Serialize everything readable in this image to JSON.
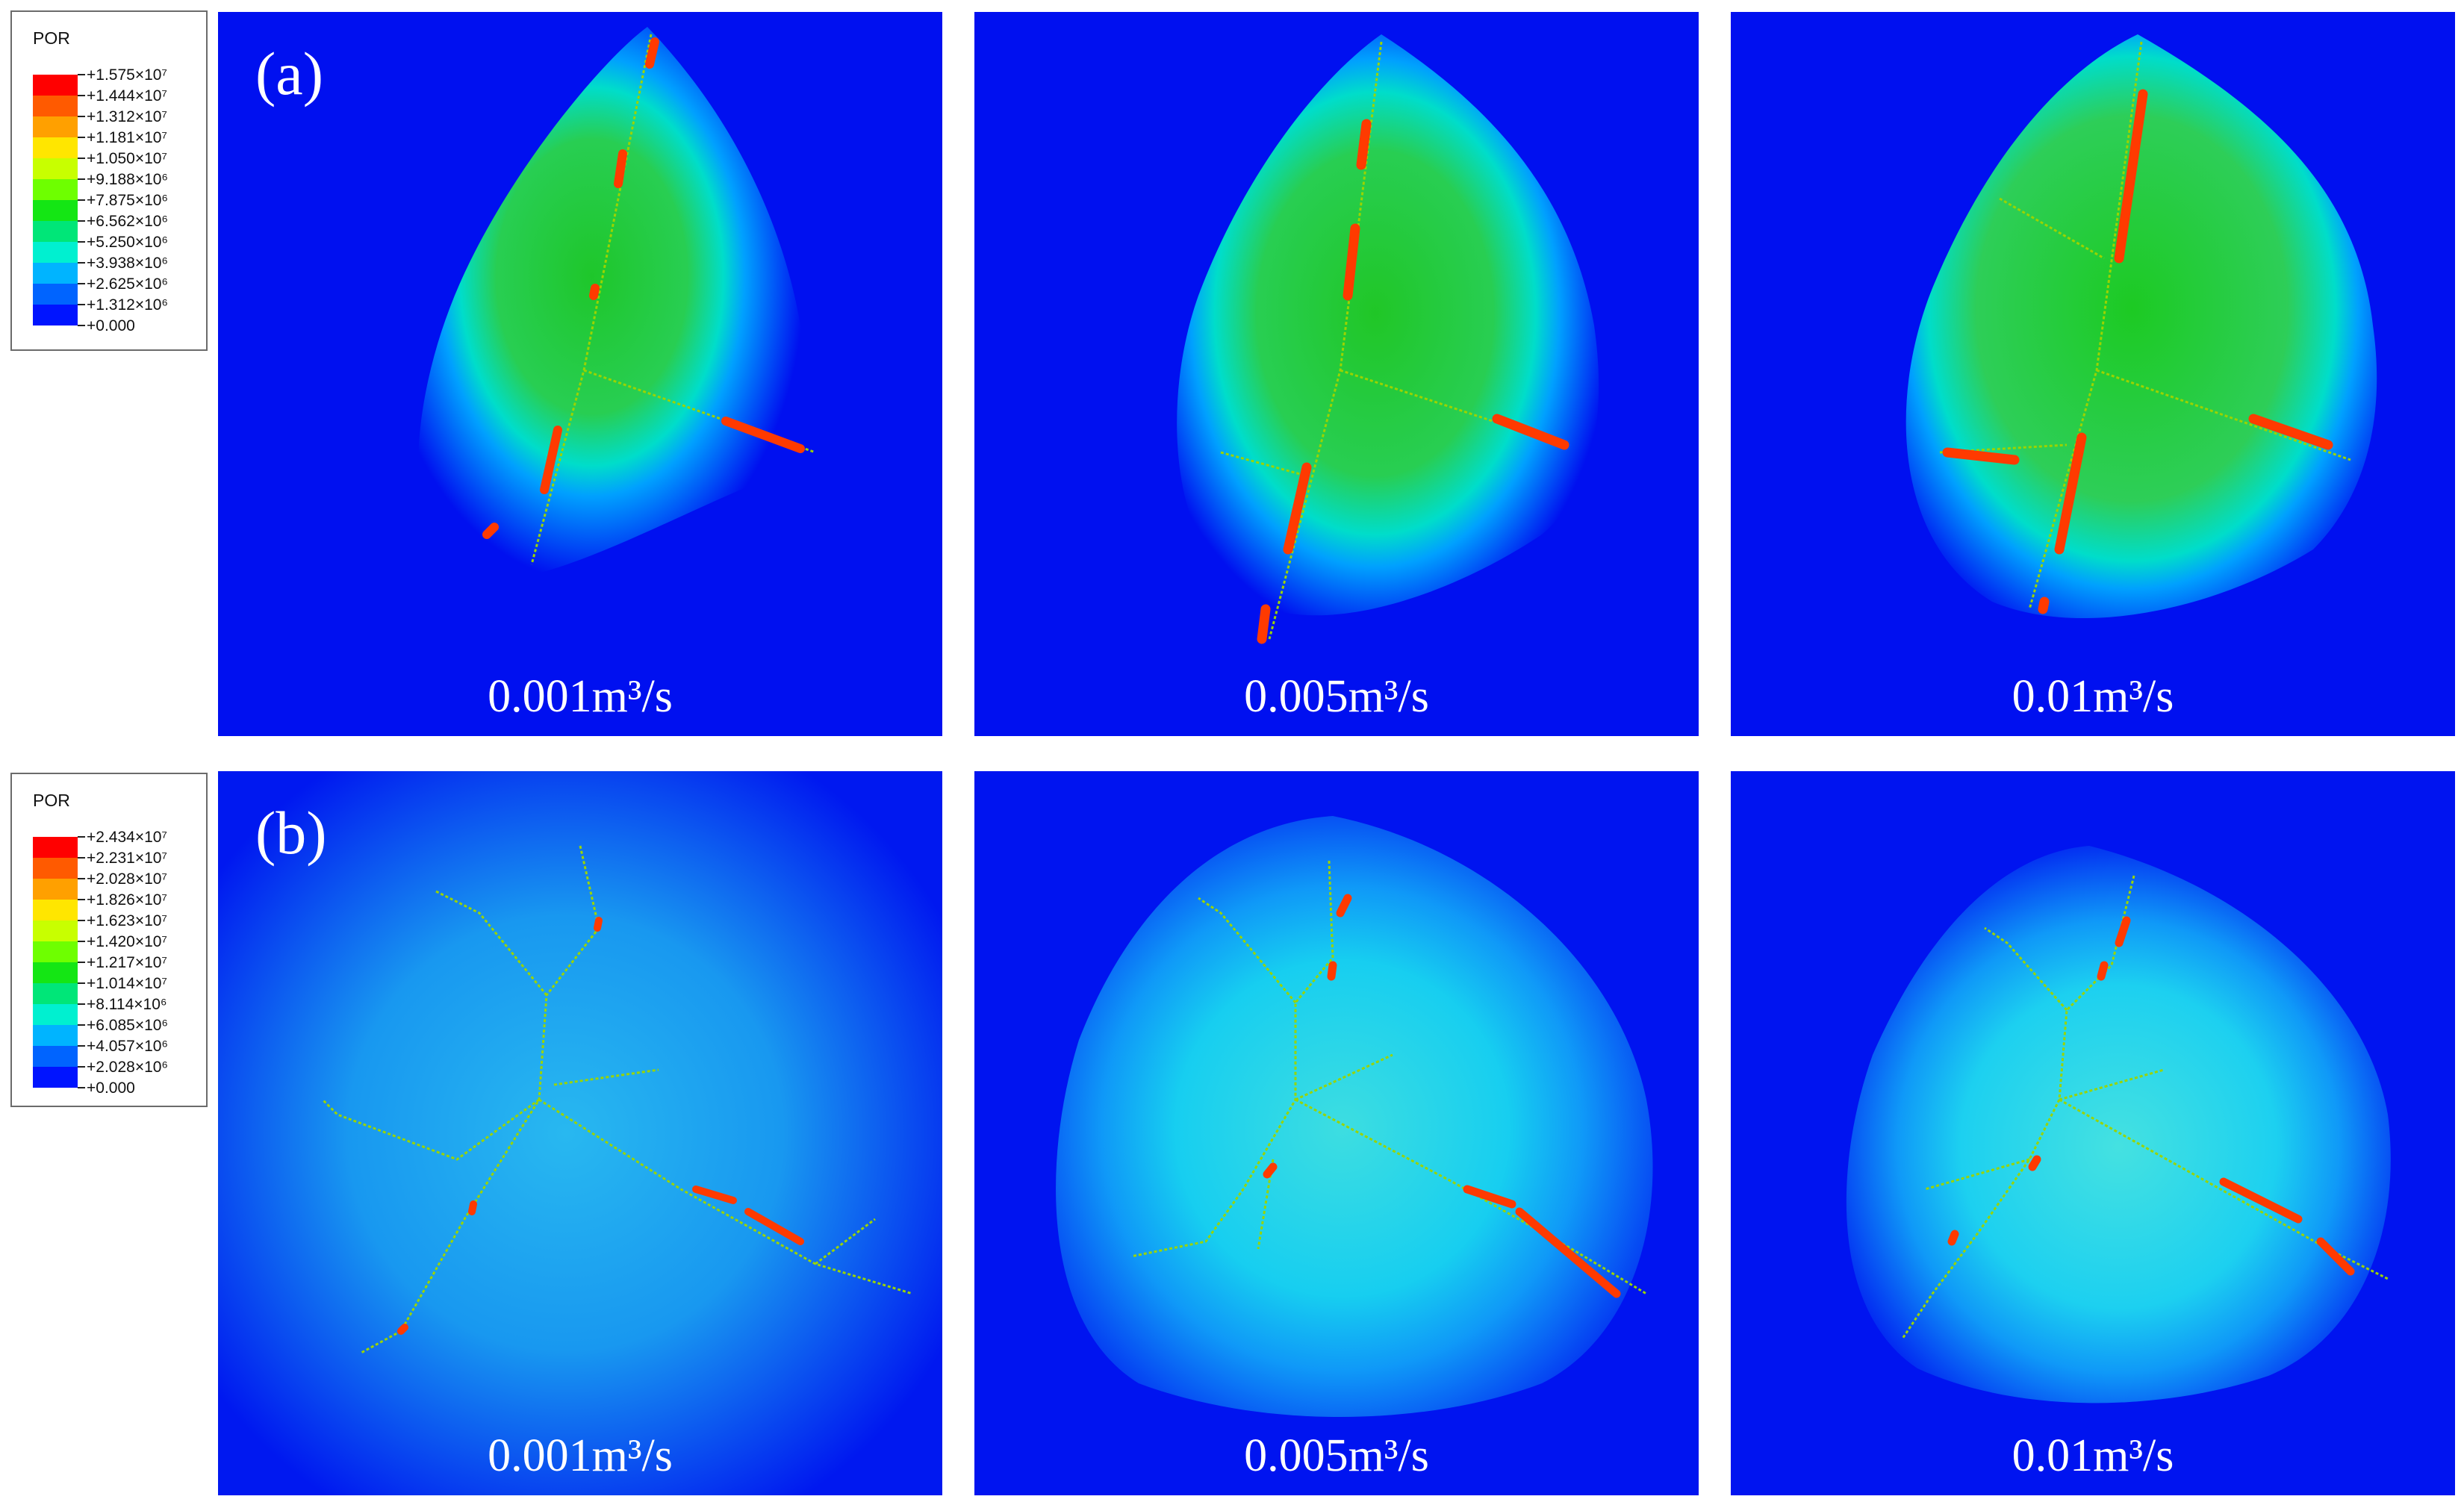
{
  "legend_a": {
    "title": "POR",
    "labels": [
      "+1.575×10⁷",
      "+1.444×10⁷",
      "+1.312×10⁷",
      "+1.181×10⁷",
      "+1.050×10⁷",
      "+9.188×10⁶",
      "+7.875×10⁶",
      "+6.562×10⁶",
      "+5.250×10⁶",
      "+3.938×10⁶",
      "+2.625×10⁶",
      "+1.312×10⁶",
      "+0.000"
    ]
  },
  "legend_b": {
    "title": "POR",
    "labels": [
      "+2.434×10⁷",
      "+2.231×10⁷",
      "+2.028×10⁷",
      "+1.826×10⁷",
      "+1.623×10⁷",
      "+1.420×10⁷",
      "+1.217×10⁷",
      "+1.014×10⁷",
      "+8.114×10⁶",
      "+6.085×10⁶",
      "+4.057×10⁶",
      "+2.028×10⁶",
      "+0.000"
    ]
  },
  "legend_colors": [
    "#ff0000",
    "#ff5a00",
    "#ffa000",
    "#ffe600",
    "#c8ff00",
    "#6eff00",
    "#14e614",
    "#00e678",
    "#00f0d0",
    "#00b4ff",
    "#0064ff",
    "#0014ff"
  ],
  "rows": [
    {
      "tag": "(a)",
      "panels": [
        "0.001m³/s",
        "0.005m³/s",
        "0.01m³/s"
      ]
    },
    {
      "tag": "(b)",
      "panels": [
        "0.001m³/s",
        "0.005m³/s",
        "0.01m³/s"
      ]
    }
  ],
  "colors": {
    "background_blue": "#0010f0",
    "fracture_red": "#ff3a00",
    "fracture_green": "#9ad400"
  }
}
